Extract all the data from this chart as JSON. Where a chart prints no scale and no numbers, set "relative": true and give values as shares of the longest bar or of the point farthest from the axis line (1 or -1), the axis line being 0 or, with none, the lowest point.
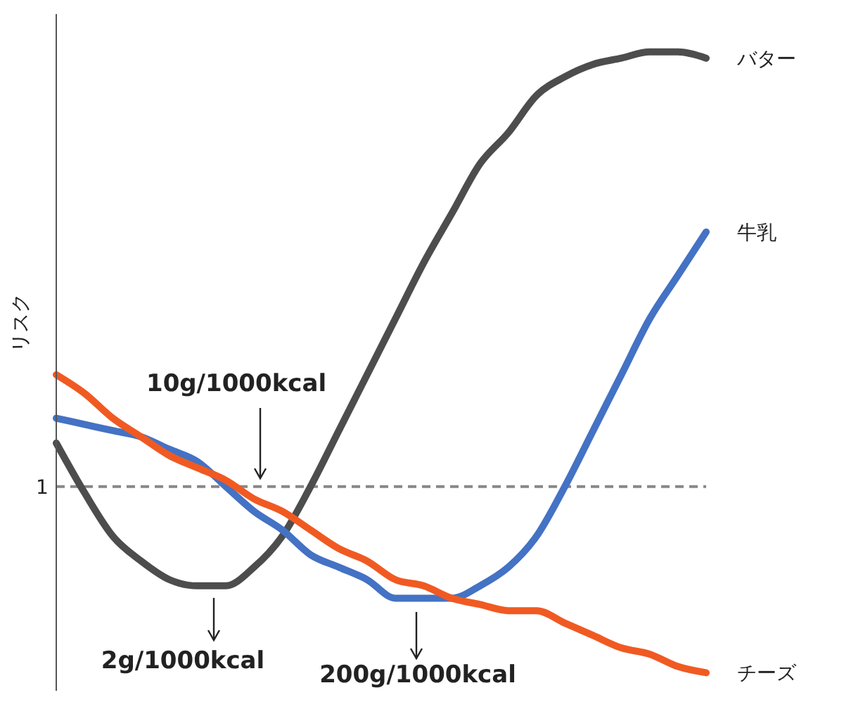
{
  "chart_data": {
    "type": "line",
    "relative": true,
    "ylabel": "リスク",
    "legend": false,
    "grid": false,
    "marker": "none",
    "tick_labels": "y",
    "categories": [
      null,
      null,
      null,
      null,
      null,
      null,
      null,
      null,
      null,
      null,
      null,
      null,
      null,
      null,
      null,
      null,
      null,
      null,
      null,
      null,
      null,
      null,
      null,
      null
    ],
    "series": [
      {
        "name": "バター",
        "color": "#4d4d4d",
        "values": [
          0.37,
          0.29,
          0.22,
          0.18,
          0.15,
          0.14,
          0.14,
          0.17,
          0.22,
          0.3,
          0.39,
          0.48,
          0.57,
          0.66,
          0.74,
          0.82,
          0.87,
          0.93,
          0.96,
          0.98,
          0.99,
          1,
          1,
          0.99
        ]
      },
      {
        "name": "牛乳",
        "color": "#4472c4",
        "values": [
          0.41,
          0.4,
          0.39,
          0.38,
          0.36,
          0.34,
          0.3,
          0.26,
          0.23,
          0.19,
          0.17,
          0.15,
          0.12,
          0.12,
          0.12,
          0.14,
          0.17,
          0.22,
          0.3,
          0.39,
          0.48,
          0.57,
          0.64,
          0.71
        ]
      },
      {
        "name": "チーズ",
        "color": "#f05a22",
        "values": [
          0.48,
          0.45,
          0.41,
          0.38,
          0.35,
          0.33,
          0.31,
          0.28,
          0.26,
          0.23,
          0.2,
          0.18,
          0.15,
          0.14,
          0.12,
          0.11,
          0.1,
          0.1,
          0.08,
          0.06,
          0.04,
          0.03,
          0.01,
          0
        ]
      }
    ],
    "ref_lines": [
      {
        "axis": "y",
        "value": 0.3,
        "color": "#888888",
        "line_style": "dashed"
      }
    ],
    "annotations": [
      "10g/1000kcal",
      "2g/1000kcal",
      "200g/1000kcal",
      "1"
    ]
  }
}
